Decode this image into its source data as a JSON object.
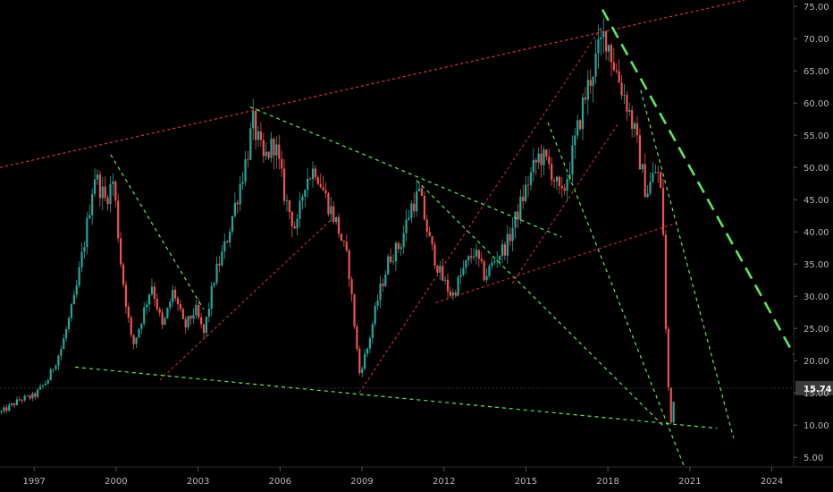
{
  "chart_data": {
    "type": "candlestick",
    "colors": {
      "background": "#000000",
      "up": "#26a69a",
      "down": "#ef5350",
      "trend_red": "#e0303a",
      "trend_green": "#5ee85e",
      "price_label_bg": "#3a3a3a",
      "axis_text": "#b2b5be"
    },
    "xlim": [
      1995.75,
      2024.8
    ],
    "ylim": [
      3.5,
      76
    ],
    "x_ticks": [
      "1997",
      "2000",
      "2003",
      "2006",
      "2009",
      "2012",
      "2015",
      "2018",
      "2021",
      "2024"
    ],
    "y_ticks": [
      "75.00",
      "70.00",
      "65.00",
      "60.00",
      "55.00",
      "50.00",
      "45.00",
      "40.00",
      "35.00",
      "30.00",
      "25.00",
      "20.00",
      "15.00",
      "10.00",
      "5.00"
    ],
    "last_price": {
      "value": 15.74,
      "label": "15.74"
    },
    "price_path": [
      [
        1995.8,
        12.0
      ],
      [
        1996.5,
        14.0
      ],
      [
        1997.0,
        14.5
      ],
      [
        1997.5,
        17.0
      ],
      [
        1998.0,
        22.0
      ],
      [
        1998.5,
        30.0
      ],
      [
        1998.9,
        40.0
      ],
      [
        1999.2,
        49.0
      ],
      [
        1999.6,
        45.0
      ],
      [
        1999.9,
        48.0
      ],
      [
        2000.2,
        34.0
      ],
      [
        2000.6,
        22.0
      ],
      [
        2000.9,
        26.0
      ],
      [
        2001.3,
        32.0
      ],
      [
        2001.7,
        25.0
      ],
      [
        2002.1,
        31.0
      ],
      [
        2002.5,
        25.0
      ],
      [
        2002.9,
        28.0
      ],
      [
        2003.2,
        24.0
      ],
      [
        2003.6,
        33.0
      ],
      [
        2004.0,
        38.0
      ],
      [
        2004.4,
        45.0
      ],
      [
        2004.8,
        52.0
      ],
      [
        2005.0,
        57.0
      ],
      [
        2005.4,
        51.0
      ],
      [
        2005.8,
        54.0
      ],
      [
        2006.2,
        45.0
      ],
      [
        2006.6,
        40.0
      ],
      [
        2006.9,
        48.0
      ],
      [
        2007.3,
        50.0
      ],
      [
        2007.7,
        45.0
      ],
      [
        2008.1,
        41.0
      ],
      [
        2008.5,
        35.0
      ],
      [
        2008.9,
        18.0
      ],
      [
        2009.2,
        22.0
      ],
      [
        2009.6,
        30.0
      ],
      [
        2010.0,
        36.0
      ],
      [
        2010.4,
        38.0
      ],
      [
        2010.8,
        44.0
      ],
      [
        2011.1,
        46.0
      ],
      [
        2011.5,
        38.0
      ],
      [
        2011.9,
        33.0
      ],
      [
        2012.3,
        30.0
      ],
      [
        2012.7,
        34.0
      ],
      [
        2013.1,
        37.0
      ],
      [
        2013.5,
        33.0
      ],
      [
        2013.9,
        36.0
      ],
      [
        2014.3,
        38.0
      ],
      [
        2014.7,
        43.0
      ],
      [
        2015.1,
        48.0
      ],
      [
        2015.5,
        52.0
      ],
      [
        2015.9,
        50.0
      ],
      [
        2016.3,
        45.0
      ],
      [
        2016.7,
        52.0
      ],
      [
        2017.1,
        60.0
      ],
      [
        2017.5,
        66.0
      ],
      [
        2017.9,
        71.0
      ],
      [
        2018.3,
        65.0
      ],
      [
        2018.7,
        60.0
      ],
      [
        2019.0,
        55.0
      ],
      [
        2019.4,
        46.0
      ],
      [
        2019.8,
        50.0
      ],
      [
        2020.0,
        44.0
      ],
      [
        2020.15,
        20.0
      ],
      [
        2020.3,
        10.0
      ],
      [
        2020.45,
        15.74
      ]
    ],
    "trendlines": [
      {
        "color": "red",
        "dash": "3,3",
        "width": 1.2,
        "from": [
          1995.75,
          50.0
        ],
        "to": [
          2023.0,
          76.0
        ]
      },
      {
        "color": "green",
        "dash": "4,4",
        "width": 1.2,
        "from": [
          1998.5,
          19.0
        ],
        "to": [
          2022.0,
          9.5
        ]
      },
      {
        "color": "green",
        "dash": "4,4",
        "width": 1.2,
        "from": [
          2004.9,
          59.4
        ],
        "to": [
          2016.3,
          39.2
        ]
      },
      {
        "color": "green",
        "dash": "4,4",
        "width": 1.2,
        "from": [
          2011.0,
          48.0
        ],
        "to": [
          2020.0,
          10.0
        ]
      },
      {
        "color": "green",
        "dash": "4,4",
        "width": 1.2,
        "from": [
          1999.8,
          52.0
        ],
        "to": [
          2003.2,
          28.0
        ]
      },
      {
        "color": "green",
        "dash": "4,4",
        "width": 1.2,
        "from": [
          2015.8,
          57.0
        ],
        "to": [
          2020.8,
          3.5
        ]
      },
      {
        "color": "green",
        "dash": "4,4",
        "width": 1.2,
        "from": [
          2019.2,
          62.0
        ],
        "to": [
          2022.6,
          8.0
        ]
      },
      {
        "color": "green",
        "dash": "14,8",
        "width": 2.6,
        "from": [
          2017.8,
          74.5
        ],
        "to": [
          2024.8,
          21.0
        ]
      },
      {
        "color": "red",
        "dash": "3,3",
        "width": 1.0,
        "from": [
          2001.6,
          17.0
        ],
        "to": [
          2007.9,
          42.0
        ]
      },
      {
        "color": "red",
        "dash": "3,3",
        "width": 1.0,
        "from": [
          2008.9,
          15.0
        ],
        "to": [
          2017.8,
          72.0
        ]
      },
      {
        "color": "red",
        "dash": "3,3",
        "width": 1.0,
        "from": [
          2011.7,
          29.0
        ],
        "to": [
          2020.6,
          41.5
        ]
      },
      {
        "color": "red",
        "dash": "3,3",
        "width": 1.0,
        "from": [
          2014.5,
          32.0
        ],
        "to": [
          2018.4,
          57.0
        ]
      }
    ]
  }
}
